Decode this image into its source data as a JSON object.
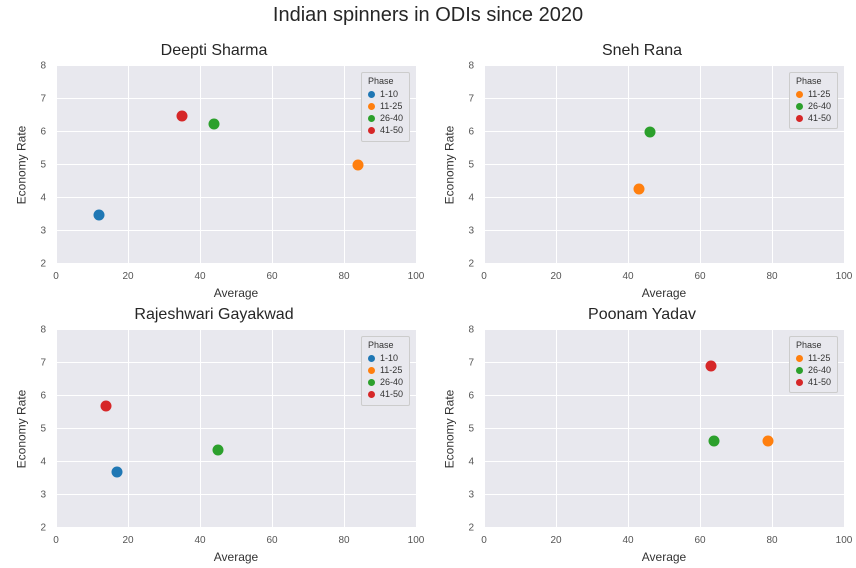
{
  "suptitle": "Indian spinners in ODIs since 2020",
  "suptitle_fontsize": 20,
  "panel_title_fontsize": 16,
  "background_color": "#ffffff",
  "plot_bg_color": "#e8e8ee",
  "grid_color": "#ffffff",
  "xlim": [
    0,
    100
  ],
  "ylim": [
    2,
    8
  ],
  "xticks": [
    0,
    20,
    40,
    60,
    80,
    100
  ],
  "yticks": [
    2,
    3,
    4,
    5,
    6,
    7,
    8
  ],
  "xlabel": "Average",
  "ylabel": "Economy Rate",
  "marker_size": 11,
  "legend_title": "Phase",
  "phase_colors": {
    "1-10": "#1f77b4",
    "11-25": "#ff7f0e",
    "26-40": "#2ca02c",
    "41-50": "#d62728"
  },
  "panels": [
    {
      "title": "Deepti Sharma",
      "legend_phases": [
        "1-10",
        "11-25",
        "26-40",
        "41-50"
      ],
      "points": [
        {
          "phase": "1-10",
          "x": 12,
          "y": 3.5
        },
        {
          "phase": "11-25",
          "x": 84,
          "y": 5.0
        },
        {
          "phase": "26-40",
          "x": 44,
          "y": 6.25
        },
        {
          "phase": "41-50",
          "x": 35,
          "y": 6.5
        }
      ]
    },
    {
      "title": "Sneh Rana",
      "legend_phases": [
        "11-25",
        "26-40",
        "41-50"
      ],
      "points": [
        {
          "phase": "11-25",
          "x": 43,
          "y": 4.28
        },
        {
          "phase": "26-40",
          "x": 46,
          "y": 6.0
        }
      ]
    },
    {
      "title": "Rajeshwari Gayakwad",
      "legend_phases": [
        "1-10",
        "11-25",
        "26-40",
        "41-50"
      ],
      "points": [
        {
          "phase": "1-10",
          "x": 17,
          "y": 3.7
        },
        {
          "phase": "26-40",
          "x": 45,
          "y": 4.35
        },
        {
          "phase": "41-50",
          "x": 14,
          "y": 5.7
        }
      ]
    },
    {
      "title": "Poonam Yadav",
      "legend_phases": [
        "11-25",
        "26-40",
        "41-50"
      ],
      "points": [
        {
          "phase": "11-25",
          "x": 79,
          "y": 4.65
        },
        {
          "phase": "26-40",
          "x": 64,
          "y": 4.65
        },
        {
          "phase": "41-50",
          "x": 63,
          "y": 6.92
        }
      ]
    }
  ]
}
